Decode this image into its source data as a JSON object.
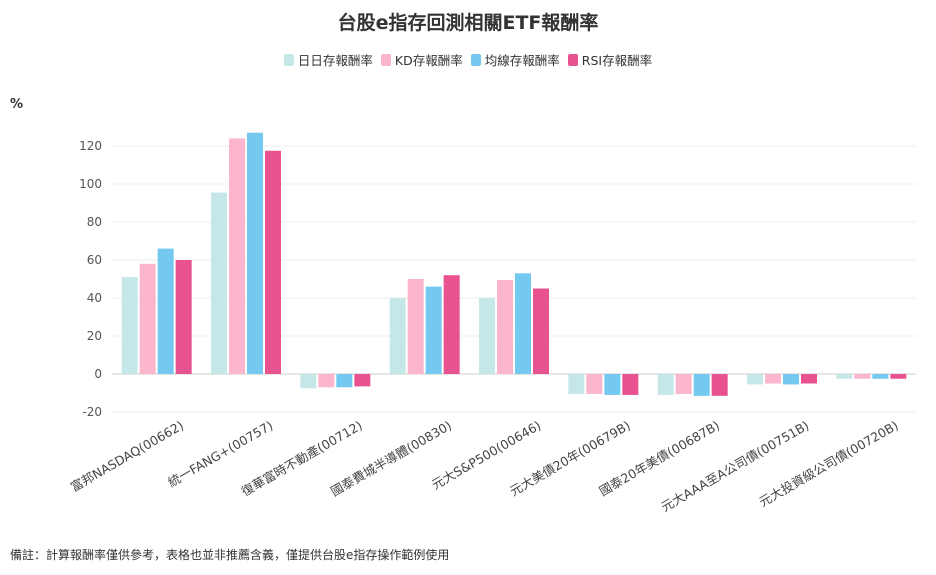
{
  "chart_data": {
    "type": "bar",
    "title": "台股e指存回測相關ETF報酬率",
    "ylabel": "%",
    "ylim": [
      -20,
      130
    ],
    "yticks": [
      -20,
      0,
      20,
      40,
      60,
      80,
      100,
      120
    ],
    "grid": true,
    "legend_position": "top-center",
    "categories": [
      "富邦NASDAQ(00662)",
      "統一FANG+(00757)",
      "復華富時不動產(00712)",
      "國泰費城半導體(00830)",
      "元大S&P500(00646)",
      "元大美債20年(00679B)",
      "國泰20年美債(00687B)",
      "元大AAA至A公司債(00751B)",
      "元大投資級公司債(00720B)"
    ],
    "series": [
      {
        "name": "日日存報酬率",
        "color": "#c6e7e8",
        "values": [
          51,
          95.5,
          -7.5,
          40,
          40,
          -10.5,
          -11,
          -5.5,
          -2.5
        ]
      },
      {
        "name": "KD存報酬率",
        "color": "#fbb5cc",
        "values": [
          58,
          124,
          -7,
          50,
          49.5,
          -10.5,
          -10.5,
          -5,
          -2.5
        ]
      },
      {
        "name": "均線存報酬率",
        "color": "#74c9f1",
        "values": [
          66,
          127,
          -7,
          46,
          53,
          -11,
          -11.5,
          -5.5,
          -2.5
        ]
      },
      {
        "name": "RSI存報酬率",
        "color": "#e8538f",
        "values": [
          60,
          117.5,
          -6.5,
          52,
          45,
          -11,
          -11.5,
          -5,
          -2.5
        ]
      }
    ]
  },
  "footnote": "備註：計算報酬率僅供參考，表格也並非推薦含義，僅提供台股e指存操作範例使用"
}
